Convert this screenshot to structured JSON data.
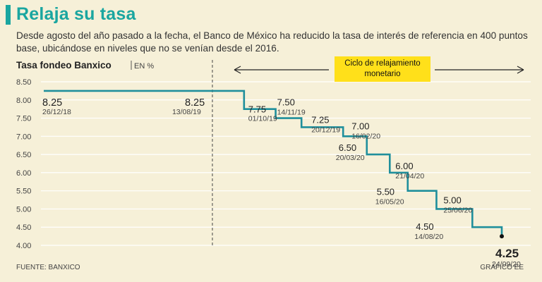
{
  "title": "Relaja su tasa",
  "subtitle": "Desde agosto del año pasado a la fecha, el Banco de México ha reducido la tasa de interés de referencia en 400 puntos base, ubicándose en niveles que no se venían desde el 2016.",
  "footer": {
    "source": "FUENTE: BANXICO",
    "credit": "GRÁFICO EE"
  },
  "annotation": {
    "cycle_label": "Ciclo de relajamiento monetario"
  },
  "colors": {
    "accent": "#1aa6a0",
    "line": "#1f8f9c",
    "highlight": "#ffe01a",
    "background": "#f6f0d8"
  },
  "chart_data": {
    "type": "line",
    "step": true,
    "ylabel_bold": "Tasa fondeo Banxico",
    "ylabel_unit": "EN %",
    "ylim": [
      4.0,
      8.5
    ],
    "yticks": [
      "8.50",
      "8.00",
      "7.50",
      "7.00",
      "6.50",
      "6.00",
      "5.50",
      "5.00",
      "4.50",
      "4.00"
    ],
    "points": [
      {
        "date": "26/12/18",
        "value": "8.25"
      },
      {
        "date": "13/08/19",
        "value": "8.25"
      },
      {
        "date": "01/10/19",
        "value": "7.75"
      },
      {
        "date": "14/11/19",
        "value": "7.50"
      },
      {
        "date": "20/12/19",
        "value": "7.25"
      },
      {
        "date": "16/02/20",
        "value": "7.00"
      },
      {
        "date": "20/03/20",
        "value": "6.50"
      },
      {
        "date": "21/04/20",
        "value": "6.00"
      },
      {
        "date": "16/05/20",
        "value": "5.50"
      },
      {
        "date": "25/06/20",
        "value": "5.00"
      },
      {
        "date": "14/08/20",
        "value": "4.50"
      },
      {
        "date": "24/09/20",
        "value": "4.25"
      }
    ]
  }
}
